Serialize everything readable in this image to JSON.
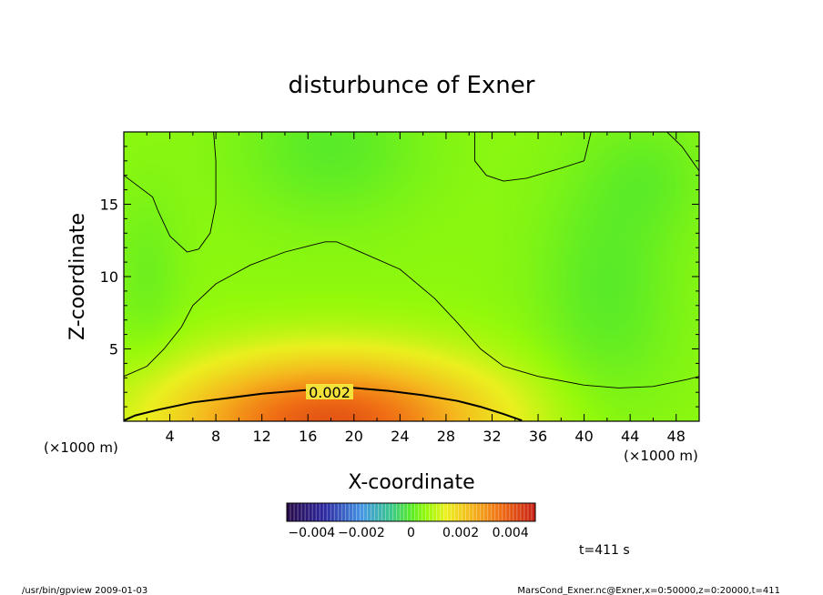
{
  "chart_data": {
    "type": "heatmap",
    "title": "disturbunce of Exner",
    "xlabel": "X-coordinate",
    "ylabel": "Z-coordinate",
    "x_unit": "(×1000 m)",
    "y_unit": "(×1000 m)",
    "xlim": [
      0,
      50
    ],
    "ylim": [
      0,
      20
    ],
    "x_ticks": [
      "4",
      "8",
      "12",
      "16",
      "20",
      "24",
      "28",
      "32",
      "36",
      "40",
      "44",
      "48"
    ],
    "y_ticks": [
      "5",
      "10",
      "15"
    ],
    "x_tick_values": [
      4,
      8,
      12,
      16,
      20,
      24,
      28,
      32,
      36,
      40,
      44,
      48
    ],
    "y_tick_values": [
      5,
      10,
      15
    ],
    "contour_label": "0.002",
    "contours": [
      {
        "name": "low-left-lobe",
        "points": [
          [
            0,
            17
          ],
          [
            2.5,
            15.5
          ],
          [
            3,
            14.5
          ],
          [
            4,
            12.8
          ],
          [
            5.5,
            11.7
          ],
          [
            6.5,
            11.9
          ],
          [
            7.5,
            13
          ],
          [
            8,
            15
          ],
          [
            8,
            18
          ],
          [
            7.8,
            20
          ]
        ]
      },
      {
        "name": "top-right-lobe",
        "points": [
          [
            30.5,
            20
          ],
          [
            30.5,
            18
          ],
          [
            31.5,
            17
          ],
          [
            33,
            16.6
          ],
          [
            35,
            16.8
          ],
          [
            38,
            17.5
          ],
          [
            40,
            18
          ],
          [
            40.6,
            20
          ]
        ]
      },
      {
        "name": "top-far-right",
        "points": [
          [
            47.2,
            20
          ],
          [
            48.5,
            19
          ],
          [
            50,
            17.3
          ]
        ]
      },
      {
        "name": "central-dome",
        "points": [
          [
            0,
            3.1
          ],
          [
            2,
            3.8
          ],
          [
            3.5,
            5
          ],
          [
            5,
            6.5
          ],
          [
            6,
            8
          ],
          [
            8,
            9.5
          ],
          [
            11,
            10.8
          ],
          [
            14,
            11.7
          ],
          [
            16,
            12.1
          ],
          [
            17.5,
            12.4
          ],
          [
            18.5,
            12.4
          ],
          [
            20,
            11.9
          ],
          [
            24,
            10.5
          ],
          [
            27,
            8.5
          ],
          [
            29,
            6.8
          ],
          [
            31,
            5
          ],
          [
            33,
            3.8
          ],
          [
            36,
            3.1
          ],
          [
            40,
            2.5
          ],
          [
            43,
            2.3
          ],
          [
            46,
            2.4
          ],
          [
            49,
            2.9
          ],
          [
            50,
            3.1
          ]
        ]
      },
      {
        "name": "level-0.002",
        "points": [
          [
            0,
            0.05
          ],
          [
            1,
            0.4
          ],
          [
            3,
            0.8
          ],
          [
            6,
            1.3
          ],
          [
            9,
            1.6
          ],
          [
            12,
            1.9
          ],
          [
            15,
            2.1
          ],
          [
            18,
            2.3
          ],
          [
            20,
            2.3
          ],
          [
            23,
            2.1
          ],
          [
            26,
            1.8
          ],
          [
            29,
            1.4
          ],
          [
            31,
            1
          ],
          [
            33,
            0.5
          ],
          [
            34.6,
            0.05
          ]
        ]
      }
    ],
    "blobs": [
      {
        "x": 18,
        "z": 19,
        "r": [
          8,
          5
        ],
        "v": -0.0005
      },
      {
        "x": 42,
        "z": 9,
        "r": [
          6,
          9
        ],
        "v": -0.0005
      },
      {
        "x": 46,
        "z": 17,
        "r": [
          5,
          4
        ],
        "v": -0.0003
      },
      {
        "x": 2,
        "z": 10,
        "r": [
          3,
          6
        ],
        "v": -0.0003
      },
      {
        "x": 18,
        "z": 0,
        "r": [
          14,
          4.5
        ],
        "v": 0.0035
      }
    ],
    "colorbar": {
      "vmin": -0.005,
      "vmax": 0.005,
      "labels": [
        "−0.004",
        "−0.002",
        "0",
        "0.002",
        "0.004"
      ],
      "label_values": [
        -0.004,
        -0.002,
        0,
        0.002,
        0.004
      ]
    }
  },
  "time_label": "t=411 s",
  "footer_left": "/usr/bin/gpview   2009-01-03",
  "footer_right": "MarsCond_Exner.nc@Exner,x=0:50000,z=0:20000,t=411"
}
